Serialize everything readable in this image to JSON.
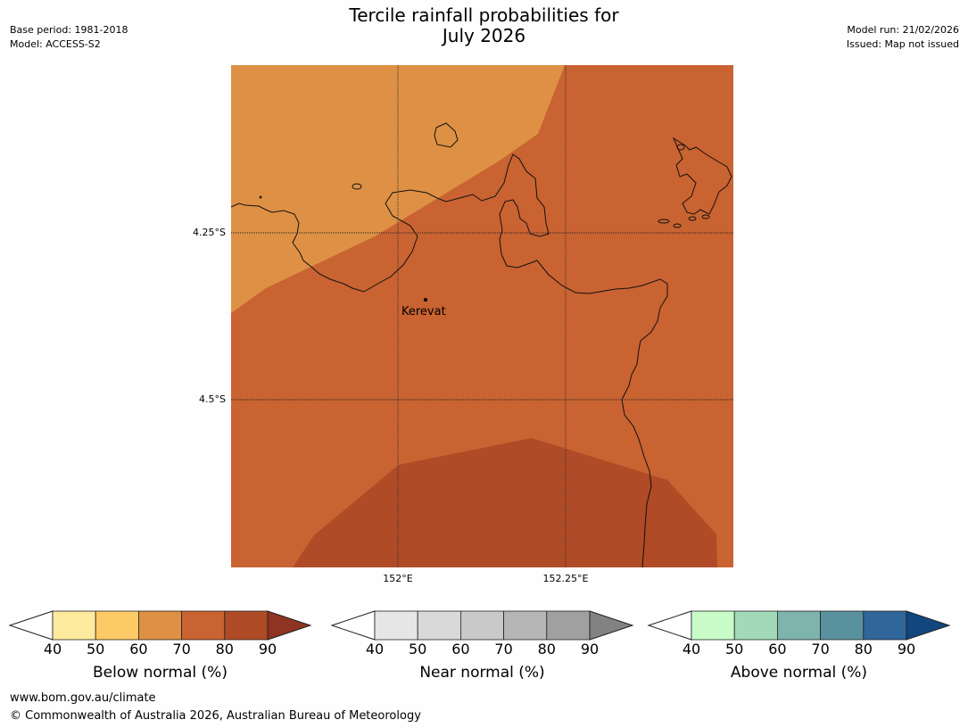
{
  "header": {
    "title_line1": "Tercile rainfall probabilities for",
    "title_line2": "July 2026",
    "base_period": "Base period: 1981-2018",
    "model": "Model: ACCESS-S2",
    "model_run": "Model run: 21/02/2026",
    "issued": "Issued: Map not issued"
  },
  "map": {
    "lat_labels": [
      "4.25°S",
      "4.5°S"
    ],
    "lon_labels": [
      "152°E",
      "152.25°E"
    ],
    "places": [
      {
        "name": "Kerevat"
      }
    ],
    "region_colors": {
      "60-70": "#de9144",
      "70-80": "#c96331",
      "80-90": "#af4b26"
    }
  },
  "colorbars": [
    {
      "label": "Below normal (%)",
      "ticks": [
        "40",
        "50",
        "60",
        "70",
        "80",
        "90"
      ],
      "colors": [
        "#ffffff",
        "#feeb9e",
        "#fdca66",
        "#de9144",
        "#c96331",
        "#af4b26",
        "#8e3420"
      ]
    },
    {
      "label": "Near normal (%)",
      "ticks": [
        "40",
        "50",
        "60",
        "70",
        "80",
        "90"
      ],
      "colors": [
        "#ffffff",
        "#e6e6e6",
        "#d9d9d9",
        "#c9c9c9",
        "#b5b5b5",
        "#a0a0a0",
        "#828282"
      ]
    },
    {
      "label": "Above normal (%)",
      "ticks": [
        "40",
        "50",
        "60",
        "70",
        "80",
        "90"
      ],
      "colors": [
        "#ffffff",
        "#c9fcc9",
        "#a2d9b9",
        "#7fb3ae",
        "#59919e",
        "#30669a",
        "#12477e"
      ]
    }
  ],
  "footer": {
    "url": "www.bom.gov.au/climate",
    "copyright": "© Commonwealth of Australia 2026, Australian Bureau of Meteorology"
  }
}
